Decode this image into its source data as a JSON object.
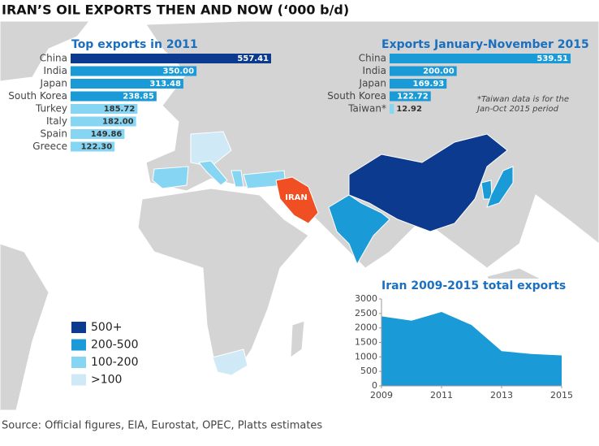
{
  "title": "IRAN’S OIL EXPORTS THEN AND NOW (‘000 b/d)",
  "source": "Source: Official figures, EIA, Eurostat, OPEC, Platts estimates",
  "map_label": "IRAN",
  "legend": [
    {
      "label": "500+",
      "color": "#0b3a8f"
    },
    {
      "label": "200-500",
      "color": "#1a9ad6"
    },
    {
      "label": "100-200",
      "color": "#86d6f3"
    },
    {
      "label": ">100",
      "color": "#cfe9f7"
    }
  ],
  "chart_data": [
    {
      "type": "hbar",
      "title": "Top exports in 2011",
      "categories": [
        "China",
        "India",
        "Japan",
        "South Korea",
        "Turkey",
        "Italy",
        "Spain",
        "Greece"
      ],
      "values": [
        557.41,
        350,
        313.48,
        238.85,
        185.72,
        182,
        149.86,
        122.3
      ],
      "value_labels": [
        "557.41",
        "350.00",
        "313.48",
        "238.85",
        "185.72",
        "182.00",
        "149.86",
        "122.30"
      ],
      "colors": [
        "#0b3a8f",
        "#1a9ad6",
        "#1a9ad6",
        "#1a9ad6",
        "#86d6f3",
        "#86d6f3",
        "#86d6f3",
        "#86d6f3"
      ]
    },
    {
      "type": "hbar",
      "title": "Exports January-November 2015",
      "categories": [
        "China",
        "India",
        "Japan",
        "South Korea",
        "Taiwan*"
      ],
      "values": [
        539.51,
        200,
        169.93,
        122.72,
        12.92
      ],
      "value_labels": [
        "539.51",
        "200.00",
        "169.93",
        "122.72",
        "12.92"
      ],
      "colors": [
        "#1a9ad6",
        "#1a9ad6",
        "#1a9ad6",
        "#1a9ad6",
        "#86d6f3"
      ],
      "note": [
        "*Taiwan data is for the",
        "Jan-Oct 2015 period"
      ]
    },
    {
      "type": "area",
      "title": "Iran 2009-2015 total exports",
      "x": [
        2009,
        2010,
        2011,
        2012,
        2013,
        2014,
        2015
      ],
      "values": [
        2400,
        2250,
        2550,
        2100,
        1200,
        1100,
        1050
      ],
      "color": "#1a9ad6",
      "xlim": [
        2009,
        2015
      ],
      "xticks": [
        2009,
        2011,
        2013,
        2015
      ],
      "ylim": [
        0,
        3000
      ],
      "yticks": [
        0,
        500,
        1000,
        1500,
        2000,
        2500,
        3000
      ]
    }
  ]
}
